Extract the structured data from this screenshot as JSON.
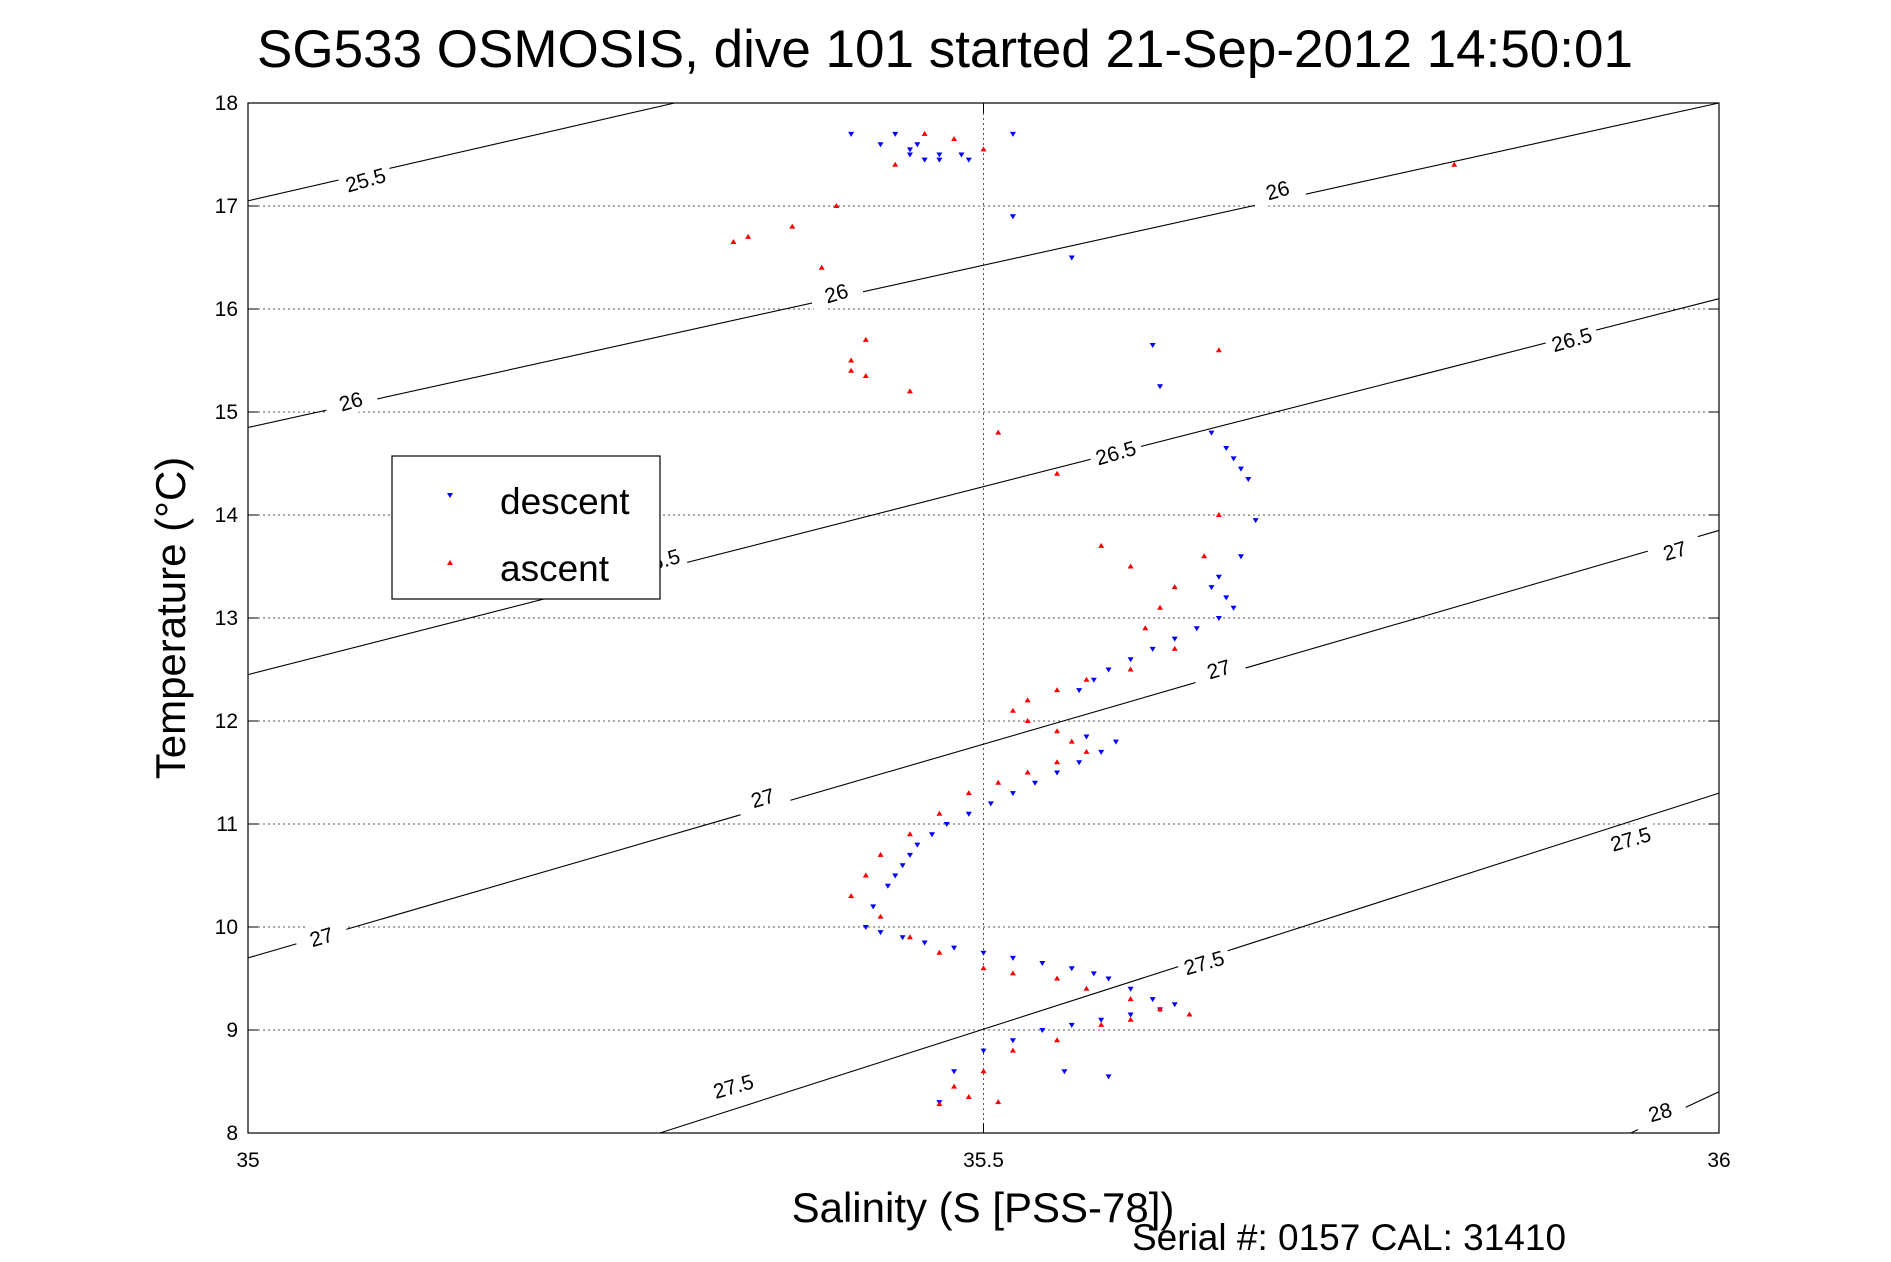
{
  "chart_data": {
    "type": "scatter",
    "title": "SG533 OSMOSIS, dive 101 started 21-Sep-2012 14:50:01",
    "xlabel": "Salinity (S [PSS-78])",
    "ylabel": "Temperature (°C)",
    "xlim": [
      35,
      36
    ],
    "ylim": [
      8,
      18
    ],
    "x_ticks": [
      35,
      35.5,
      36
    ],
    "x_tick_labels": [
      "35",
      "35.5",
      "36"
    ],
    "y_ticks": [
      8,
      9,
      10,
      11,
      12,
      13,
      14,
      15,
      16,
      17,
      18
    ],
    "y_tick_labels": [
      "8",
      "9",
      "10",
      "11",
      "12",
      "13",
      "14",
      "15",
      "16",
      "17",
      "18"
    ],
    "grid": true,
    "legend_position": "upper-left",
    "footer": "Serial #: 0157  CAL: 31410",
    "density_contours": [
      {
        "sigma": 25.5,
        "label": "25.5",
        "x": [
          35.0,
          35.29
        ],
        "y": [
          17.05,
          18.0
        ]
      },
      {
        "sigma": 26.0,
        "label": "26",
        "x": [
          35.0,
          36.0
        ],
        "y": [
          14.85,
          18.0
        ]
      },
      {
        "sigma": 26.5,
        "label": "26.5",
        "x": [
          35.0,
          36.0
        ],
        "y": [
          12.45,
          16.1
        ]
      },
      {
        "sigma": 27.0,
        "label": "27",
        "x": [
          35.0,
          36.0
        ],
        "y": [
          9.7,
          13.85
        ]
      },
      {
        "sigma": 27.5,
        "label": "27.5",
        "x": [
          35.28,
          36.0
        ],
        "y": [
          8.0,
          11.3
        ]
      },
      {
        "sigma": 28.0,
        "label": "28",
        "x": [
          35.94,
          36.0
        ],
        "y": [
          8.0,
          8.4
        ]
      }
    ],
    "contour_labels": [
      {
        "text": "25.5",
        "x": 35.08,
        "y": 17.25
      },
      {
        "text": "26",
        "x": 35.4,
        "y": 16.15
      },
      {
        "text": "26",
        "x": 35.07,
        "y": 15.1
      },
      {
        "text": "26",
        "x": 35.7,
        "y": 17.15
      },
      {
        "text": "26.5",
        "x": 35.59,
        "y": 14.6
      },
      {
        "text": "26.5",
        "x": 35.9,
        "y": 15.7
      },
      {
        "text": "26.5",
        "x": 35.28,
        "y": 13.55
      },
      {
        "text": "27",
        "x": 35.35,
        "y": 11.25
      },
      {
        "text": "27",
        "x": 35.05,
        "y": 9.9
      },
      {
        "text": "27",
        "x": 35.66,
        "y": 12.5
      },
      {
        "text": "27",
        "x": 35.97,
        "y": 13.65
      },
      {
        "text": "27.5",
        "x": 35.33,
        "y": 8.45
      },
      {
        "text": "27.5",
        "x": 35.65,
        "y": 9.65
      },
      {
        "text": "27.5",
        "x": 35.94,
        "y": 10.85
      },
      {
        "text": "28",
        "x": 35.96,
        "y": 8.2
      }
    ],
    "series": [
      {
        "name": "descent",
        "color": "#0000ff",
        "marker": "triangle-down",
        "x": [
          35.44,
          35.41,
          35.43,
          35.45,
          35.46,
          35.47,
          35.49,
          35.52,
          35.45,
          35.455,
          35.47,
          35.485,
          35.56,
          35.52,
          35.615,
          35.62,
          35.655,
          35.665,
          35.67,
          35.675,
          35.68,
          35.685,
          35.675,
          35.66,
          35.655,
          35.665,
          35.67,
          35.66,
          35.645,
          35.63,
          35.615,
          35.6,
          35.585,
          35.575,
          35.565,
          35.57,
          35.59,
          35.58,
          35.565,
          35.55,
          35.535,
          35.52,
          35.505,
          35.49,
          35.475,
          35.465,
          35.455,
          35.45,
          35.445,
          35.44,
          35.435,
          35.425,
          35.42,
          35.43,
          35.445,
          35.46,
          35.48,
          35.5,
          35.52,
          35.54,
          35.56,
          35.575,
          35.585,
          35.6,
          35.615,
          35.63,
          35.62,
          35.6,
          35.58,
          35.56,
          35.54,
          35.52,
          35.5,
          35.48,
          35.47,
          35.555,
          35.585
        ],
        "y": [
          17.7,
          17.7,
          17.6,
          17.5,
          17.45,
          17.5,
          17.45,
          17.7,
          17.55,
          17.6,
          17.45,
          17.5,
          16.5,
          16.9,
          15.65,
          15.25,
          14.8,
          14.65,
          14.55,
          14.45,
          14.35,
          13.95,
          13.6,
          13.4,
          13.3,
          13.2,
          13.1,
          13.0,
          12.9,
          12.8,
          12.7,
          12.6,
          12.5,
          12.4,
          12.3,
          11.85,
          11.8,
          11.7,
          11.6,
          11.5,
          11.4,
          11.3,
          11.2,
          11.1,
          11.0,
          10.9,
          10.8,
          10.7,
          10.6,
          10.5,
          10.4,
          10.2,
          10.0,
          9.95,
          9.9,
          9.85,
          9.8,
          9.75,
          9.7,
          9.65,
          9.6,
          9.55,
          9.5,
          9.4,
          9.3,
          9.25,
          9.2,
          9.15,
          9.1,
          9.05,
          9.0,
          8.9,
          8.8,
          8.6,
          8.3,
          8.6,
          8.55
        ]
      },
      {
        "name": "ascent",
        "color": "#ff0000",
        "marker": "triangle-up",
        "x": [
          35.46,
          35.48,
          35.5,
          35.33,
          35.34,
          35.37,
          35.4,
          35.39,
          35.44,
          35.42,
          35.41,
          35.41,
          35.42,
          35.45,
          35.66,
          35.66,
          35.82,
          35.51,
          35.55,
          35.58,
          35.65,
          35.6,
          35.63,
          35.62,
          35.61,
          35.63,
          35.6,
          35.57,
          35.55,
          35.53,
          35.52,
          35.53,
          35.55,
          35.56,
          35.57,
          35.55,
          35.53,
          35.51,
          35.49,
          35.47,
          35.45,
          35.43,
          35.42,
          35.41,
          35.43,
          35.45,
          35.47,
          35.5,
          35.52,
          35.55,
          35.57,
          35.6,
          35.62,
          35.64,
          35.6,
          35.58,
          35.55,
          35.52,
          35.5,
          35.48,
          35.49,
          35.51,
          35.47
        ],
        "y": [
          17.7,
          17.65,
          17.55,
          16.65,
          16.7,
          16.8,
          17.0,
          16.4,
          17.4,
          15.7,
          15.5,
          15.4,
          15.35,
          15.2,
          14.0,
          15.6,
          17.4,
          14.8,
          14.4,
          13.7,
          13.6,
          13.5,
          13.3,
          13.1,
          12.9,
          12.7,
          12.5,
          12.4,
          12.3,
          12.2,
          12.1,
          12.0,
          11.9,
          11.8,
          11.7,
          11.6,
          11.5,
          11.4,
          11.3,
          11.1,
          10.9,
          10.7,
          10.5,
          10.3,
          10.1,
          9.9,
          9.75,
          9.6,
          9.55,
          9.5,
          9.4,
          9.3,
          9.2,
          9.15,
          9.1,
          9.05,
          8.9,
          8.8,
          8.6,
          8.45,
          8.35,
          8.3,
          8.28
        ]
      }
    ]
  }
}
